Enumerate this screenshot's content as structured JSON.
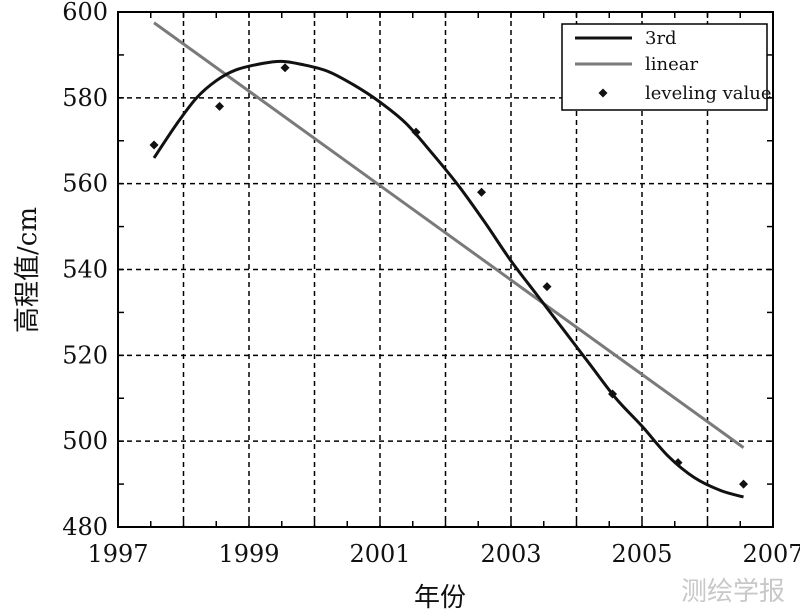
{
  "chart_data": {
    "type": "line",
    "xlabel": "年份",
    "ylabel": "高程值/cm",
    "xlim": [
      1997,
      2007
    ],
    "ylim": [
      480,
      600
    ],
    "x_ticks": [
      1997,
      1999,
      2001,
      2003,
      2005,
      2007
    ],
    "y_ticks": [
      480,
      500,
      520,
      540,
      560,
      580,
      600
    ],
    "grid": true,
    "legend_position": "top-right",
    "series": [
      {
        "name": "3rd",
        "kind": "line",
        "color": "#111111",
        "x": [
          1997.55,
          1997.9,
          1998.2,
          1998.5,
          1998.8,
          1999.2,
          1999.5,
          1999.8,
          2000.2,
          2000.6,
          2001.0,
          2001.4,
          2001.8,
          2002.2,
          2002.6,
          2003.0,
          2003.4,
          2003.8,
          2004.2,
          2004.6,
          2005.0,
          2005.4,
          2005.8,
          2006.2,
          2006.55
        ],
        "y": [
          566,
          574,
          580,
          584,
          586.5,
          588,
          588.5,
          587.8,
          586.2,
          583,
          579,
          574,
          567,
          559.5,
          551,
          542,
          534,
          526,
          518,
          510,
          503.5,
          496.5,
          491.5,
          488.5,
          487
        ]
      },
      {
        "name": "linear",
        "kind": "line",
        "color": "#7a7a7a",
        "x": [
          1997.55,
          2006.55
        ],
        "y": [
          597.5,
          498.5
        ]
      },
      {
        "name": "leveling value",
        "kind": "scatter",
        "color": "#111111",
        "x": [
          1997.55,
          1998.55,
          1999.55,
          2001.55,
          2002.55,
          2003.55,
          2004.55,
          2005.55,
          2006.55
        ],
        "y": [
          569,
          578,
          587,
          572,
          558,
          536,
          511,
          495,
          490
        ]
      }
    ]
  },
  "watermark": "测绘学报"
}
